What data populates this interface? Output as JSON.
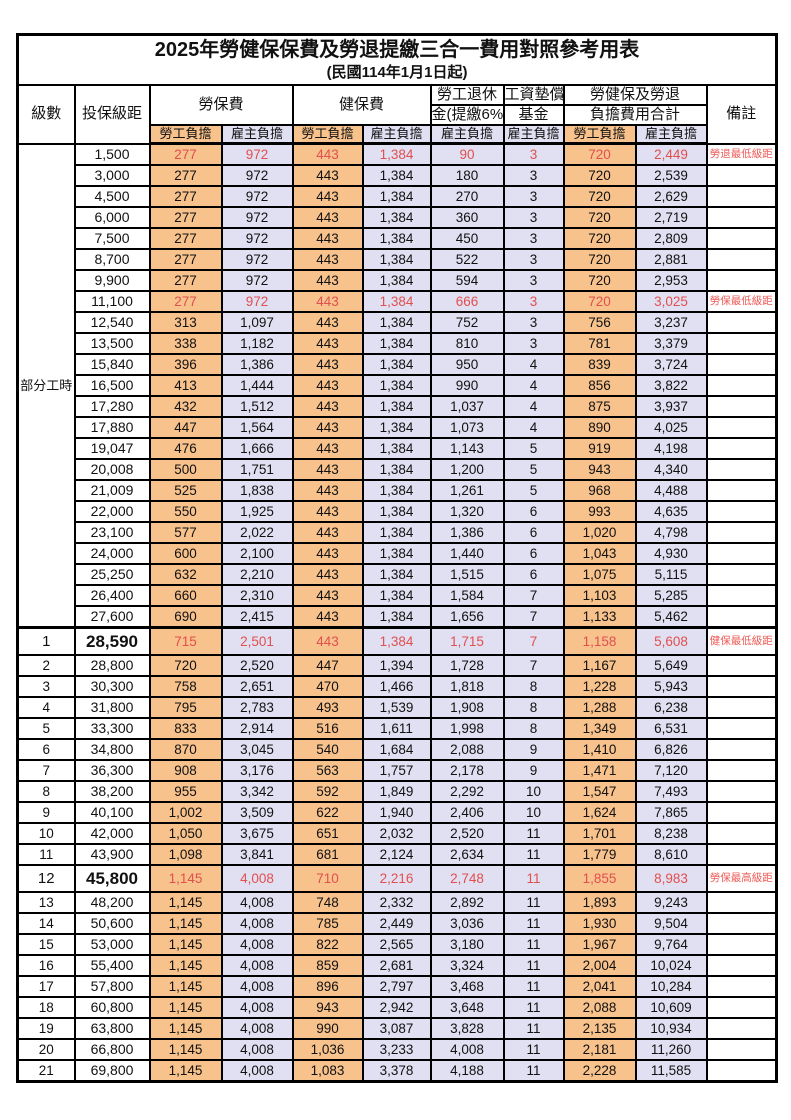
{
  "title": "2025年勞健保保費及勞退提繳三合一費用對照參考用表",
  "subtitle": "(民國114年1月1日起)",
  "header": {
    "level": "級數",
    "bracket": "投保級距",
    "labor_ins": "勞保費",
    "health_ins": "健保費",
    "pension_line1": "勞工退休",
    "pension_line2": "金(提繳6%)",
    "fund_line1": "工資墊償",
    "fund_line2": "基金",
    "total_line1": "勞健保及勞退",
    "total_line2": "負擔費用合計",
    "remark": "備註",
    "employee": "勞工負擔",
    "employer": "雇主負擔"
  },
  "part_time_label": "部分工時",
  "colors": {
    "employee_bg": "#f8c28d",
    "employer_bg": "#e1e0f2",
    "highlight_red": "#e14f4f",
    "border": "#000000"
  },
  "rows": [
    {
      "level": "",
      "bracket": "1,500",
      "values": [
        "277",
        "972",
        "443",
        "1,384",
        "90",
        "3",
        "720",
        "2,449"
      ],
      "remark": "勞退最低級距",
      "red": true,
      "big": false
    },
    {
      "level": "",
      "bracket": "3,000",
      "values": [
        "277",
        "972",
        "443",
        "1,384",
        "180",
        "3",
        "720",
        "2,539"
      ],
      "remark": "",
      "red": false,
      "big": false
    },
    {
      "level": "",
      "bracket": "4,500",
      "values": [
        "277",
        "972",
        "443",
        "1,384",
        "270",
        "3",
        "720",
        "2,629"
      ],
      "remark": "",
      "red": false,
      "big": false
    },
    {
      "level": "",
      "bracket": "6,000",
      "values": [
        "277",
        "972",
        "443",
        "1,384",
        "360",
        "3",
        "720",
        "2,719"
      ],
      "remark": "",
      "red": false,
      "big": false
    },
    {
      "level": "",
      "bracket": "7,500",
      "values": [
        "277",
        "972",
        "443",
        "1,384",
        "450",
        "3",
        "720",
        "2,809"
      ],
      "remark": "",
      "red": false,
      "big": false
    },
    {
      "level": "",
      "bracket": "8,700",
      "values": [
        "277",
        "972",
        "443",
        "1,384",
        "522",
        "3",
        "720",
        "2,881"
      ],
      "remark": "",
      "red": false,
      "big": false
    },
    {
      "level": "",
      "bracket": "9,900",
      "values": [
        "277",
        "972",
        "443",
        "1,384",
        "594",
        "3",
        "720",
        "2,953"
      ],
      "remark": "",
      "red": false,
      "big": false
    },
    {
      "level": "",
      "bracket": "11,100",
      "values": [
        "277",
        "972",
        "443",
        "1,384",
        "666",
        "3",
        "720",
        "3,025"
      ],
      "remark": "勞保最低級距",
      "red": true,
      "big": false
    },
    {
      "level": "",
      "bracket": "12,540",
      "values": [
        "313",
        "1,097",
        "443",
        "1,384",
        "752",
        "3",
        "756",
        "3,237"
      ],
      "remark": "",
      "red": false,
      "big": false
    },
    {
      "level": "",
      "bracket": "13,500",
      "values": [
        "338",
        "1,182",
        "443",
        "1,384",
        "810",
        "3",
        "781",
        "3,379"
      ],
      "remark": "",
      "red": false,
      "big": false
    },
    {
      "level": "",
      "bracket": "15,840",
      "values": [
        "396",
        "1,386",
        "443",
        "1,384",
        "950",
        "4",
        "839",
        "3,724"
      ],
      "remark": "",
      "red": false,
      "big": false
    },
    {
      "level": "",
      "bracket": "16,500",
      "values": [
        "413",
        "1,444",
        "443",
        "1,384",
        "990",
        "4",
        "856",
        "3,822"
      ],
      "remark": "",
      "red": false,
      "big": false
    },
    {
      "level": "",
      "bracket": "17,280",
      "values": [
        "432",
        "1,512",
        "443",
        "1,384",
        "1,037",
        "4",
        "875",
        "3,937"
      ],
      "remark": "",
      "red": false,
      "big": false
    },
    {
      "level": "",
      "bracket": "17,880",
      "values": [
        "447",
        "1,564",
        "443",
        "1,384",
        "1,073",
        "4",
        "890",
        "4,025"
      ],
      "remark": "",
      "red": false,
      "big": false
    },
    {
      "level": "",
      "bracket": "19,047",
      "values": [
        "476",
        "1,666",
        "443",
        "1,384",
        "1,143",
        "5",
        "919",
        "4,198"
      ],
      "remark": "",
      "red": false,
      "big": false
    },
    {
      "level": "",
      "bracket": "20,008",
      "values": [
        "500",
        "1,751",
        "443",
        "1,384",
        "1,200",
        "5",
        "943",
        "4,340"
      ],
      "remark": "",
      "red": false,
      "big": false
    },
    {
      "level": "",
      "bracket": "21,009",
      "values": [
        "525",
        "1,838",
        "443",
        "1,384",
        "1,261",
        "5",
        "968",
        "4,488"
      ],
      "remark": "",
      "red": false,
      "big": false
    },
    {
      "level": "",
      "bracket": "22,000",
      "values": [
        "550",
        "1,925",
        "443",
        "1,384",
        "1,320",
        "6",
        "993",
        "4,635"
      ],
      "remark": "",
      "red": false,
      "big": false
    },
    {
      "level": "",
      "bracket": "23,100",
      "values": [
        "577",
        "2,022",
        "443",
        "1,384",
        "1,386",
        "6",
        "1,020",
        "4,798"
      ],
      "remark": "",
      "red": false,
      "big": false
    },
    {
      "level": "",
      "bracket": "24,000",
      "values": [
        "600",
        "2,100",
        "443",
        "1,384",
        "1,440",
        "6",
        "1,043",
        "4,930"
      ],
      "remark": "",
      "red": false,
      "big": false
    },
    {
      "level": "",
      "bracket": "25,250",
      "values": [
        "632",
        "2,210",
        "443",
        "1,384",
        "1,515",
        "6",
        "1,075",
        "5,115"
      ],
      "remark": "",
      "red": false,
      "big": false
    },
    {
      "level": "",
      "bracket": "26,400",
      "values": [
        "660",
        "2,310",
        "443",
        "1,384",
        "1,584",
        "7",
        "1,103",
        "5,285"
      ],
      "remark": "",
      "red": false,
      "big": false
    },
    {
      "level": "",
      "bracket": "27,600",
      "values": [
        "690",
        "2,415",
        "443",
        "1,384",
        "1,656",
        "7",
        "1,133",
        "5,462"
      ],
      "remark": "",
      "red": false,
      "big": false
    },
    {
      "level": "1",
      "bracket": "28,590",
      "values": [
        "715",
        "2,501",
        "443",
        "1,384",
        "1,715",
        "7",
        "1,158",
        "5,608"
      ],
      "remark": "健保最低級距",
      "red": true,
      "big": true
    },
    {
      "level": "2",
      "bracket": "28,800",
      "values": [
        "720",
        "2,520",
        "447",
        "1,394",
        "1,728",
        "7",
        "1,167",
        "5,649"
      ],
      "remark": "",
      "red": false,
      "big": false
    },
    {
      "level": "3",
      "bracket": "30,300",
      "values": [
        "758",
        "2,651",
        "470",
        "1,466",
        "1,818",
        "8",
        "1,228",
        "5,943"
      ],
      "remark": "",
      "red": false,
      "big": false
    },
    {
      "level": "4",
      "bracket": "31,800",
      "values": [
        "795",
        "2,783",
        "493",
        "1,539",
        "1,908",
        "8",
        "1,288",
        "6,238"
      ],
      "remark": "",
      "red": false,
      "big": false
    },
    {
      "level": "5",
      "bracket": "33,300",
      "values": [
        "833",
        "2,914",
        "516",
        "1,611",
        "1,998",
        "8",
        "1,349",
        "6,531"
      ],
      "remark": "",
      "red": false,
      "big": false
    },
    {
      "level": "6",
      "bracket": "34,800",
      "values": [
        "870",
        "3,045",
        "540",
        "1,684",
        "2,088",
        "9",
        "1,410",
        "6,826"
      ],
      "remark": "",
      "red": false,
      "big": false
    },
    {
      "level": "7",
      "bracket": "36,300",
      "values": [
        "908",
        "3,176",
        "563",
        "1,757",
        "2,178",
        "9",
        "1,471",
        "7,120"
      ],
      "remark": "",
      "red": false,
      "big": false
    },
    {
      "level": "8",
      "bracket": "38,200",
      "values": [
        "955",
        "3,342",
        "592",
        "1,849",
        "2,292",
        "10",
        "1,547",
        "7,493"
      ],
      "remark": "",
      "red": false,
      "big": false
    },
    {
      "level": "9",
      "bracket": "40,100",
      "values": [
        "1,002",
        "3,509",
        "622",
        "1,940",
        "2,406",
        "10",
        "1,624",
        "7,865"
      ],
      "remark": "",
      "red": false,
      "big": false
    },
    {
      "level": "10",
      "bracket": "42,000",
      "values": [
        "1,050",
        "3,675",
        "651",
        "2,032",
        "2,520",
        "11",
        "1,701",
        "8,238"
      ],
      "remark": "",
      "red": false,
      "big": false
    },
    {
      "level": "11",
      "bracket": "43,900",
      "values": [
        "1,098",
        "3,841",
        "681",
        "2,124",
        "2,634",
        "11",
        "1,779",
        "8,610"
      ],
      "remark": "",
      "red": false,
      "big": false
    },
    {
      "level": "12",
      "bracket": "45,800",
      "values": [
        "1,145",
        "4,008",
        "710",
        "2,216",
        "2,748",
        "11",
        "1,855",
        "8,983"
      ],
      "remark": "勞保最高級距",
      "red": true,
      "big": true
    },
    {
      "level": "13",
      "bracket": "48,200",
      "values": [
        "1,145",
        "4,008",
        "748",
        "2,332",
        "2,892",
        "11",
        "1,893",
        "9,243"
      ],
      "remark": "",
      "red": false,
      "big": false
    },
    {
      "level": "14",
      "bracket": "50,600",
      "values": [
        "1,145",
        "4,008",
        "785",
        "2,449",
        "3,036",
        "11",
        "1,930",
        "9,504"
      ],
      "remark": "",
      "red": false,
      "big": false
    },
    {
      "level": "15",
      "bracket": "53,000",
      "values": [
        "1,145",
        "4,008",
        "822",
        "2,565",
        "3,180",
        "11",
        "1,967",
        "9,764"
      ],
      "remark": "",
      "red": false,
      "big": false
    },
    {
      "level": "16",
      "bracket": "55,400",
      "values": [
        "1,145",
        "4,008",
        "859",
        "2,681",
        "3,324",
        "11",
        "2,004",
        "10,024"
      ],
      "remark": "",
      "red": false,
      "big": false
    },
    {
      "level": "17",
      "bracket": "57,800",
      "values": [
        "1,145",
        "4,008",
        "896",
        "2,797",
        "3,468",
        "11",
        "2,041",
        "10,284"
      ],
      "remark": "",
      "red": false,
      "big": false
    },
    {
      "level": "18",
      "bracket": "60,800",
      "values": [
        "1,145",
        "4,008",
        "943",
        "2,942",
        "3,648",
        "11",
        "2,088",
        "10,609"
      ],
      "remark": "",
      "red": false,
      "big": false
    },
    {
      "level": "19",
      "bracket": "63,800",
      "values": [
        "1,145",
        "4,008",
        "990",
        "3,087",
        "3,828",
        "11",
        "2,135",
        "10,934"
      ],
      "remark": "",
      "red": false,
      "big": false
    },
    {
      "level": "20",
      "bracket": "66,800",
      "values": [
        "1,145",
        "4,008",
        "1,036",
        "3,233",
        "4,008",
        "11",
        "2,181",
        "11,260"
      ],
      "remark": "",
      "red": false,
      "big": false
    },
    {
      "level": "21",
      "bracket": "69,800",
      "values": [
        "1,145",
        "4,008",
        "1,083",
        "3,378",
        "4,188",
        "11",
        "2,228",
        "11,585"
      ],
      "remark": "",
      "red": false,
      "big": false
    }
  ]
}
